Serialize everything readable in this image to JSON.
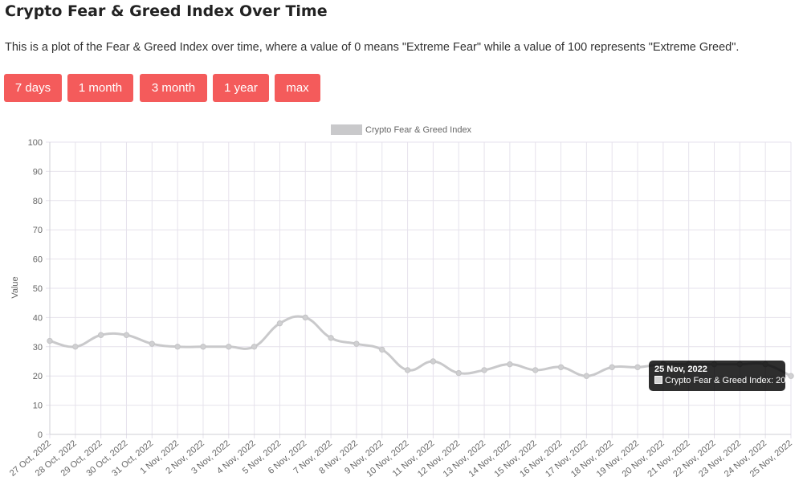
{
  "page": {
    "title": "Crypto Fear & Greed Index Over Time",
    "description": "This is a plot of the Fear & Greed Index over time, where a value of 0 means \"Extreme Fear\" while a value of 100 represents \"Extreme Greed\"."
  },
  "buttons": [
    {
      "label": "7 days"
    },
    {
      "label": "1 month"
    },
    {
      "label": "3 month"
    },
    {
      "label": "1 year"
    },
    {
      "label": "max"
    }
  ],
  "tooltip": {
    "date": "25 Nov, 2022",
    "series": "Crypto Fear & Greed Index",
    "value": "20",
    "text": "Crypto Fear & Greed Index: 20"
  },
  "colors": {
    "button": "#f45b5b",
    "line": "#c9c9cb",
    "grid": "#e6e2ec"
  },
  "chart_data": {
    "type": "line",
    "title": "",
    "xlabel": "",
    "ylabel": "Value",
    "ylim": [
      0,
      100
    ],
    "yticks": [
      0,
      10,
      20,
      30,
      40,
      50,
      60,
      70,
      80,
      90,
      100
    ],
    "grid": true,
    "legend_position": "top-center",
    "categories": [
      "27 Oct, 2022",
      "28 Oct, 2022",
      "29 Oct, 2022",
      "30 Oct, 2022",
      "31 Oct, 2022",
      "1 Nov, 2022",
      "2 Nov, 2022",
      "3 Nov, 2022",
      "4 Nov, 2022",
      "5 Nov, 2022",
      "6 Nov, 2022",
      "7 Nov, 2022",
      "8 Nov, 2022",
      "9 Nov, 2022",
      "10 Nov, 2022",
      "11 Nov, 2022",
      "12 Nov, 2022",
      "13 Nov, 2022",
      "14 Nov, 2022",
      "15 Nov, 2022",
      "16 Nov, 2022",
      "17 Nov, 2022",
      "18 Nov, 2022",
      "19 Nov, 2022",
      "20 Nov, 2022",
      "21 Nov, 2022",
      "22 Nov, 2022",
      "23 Nov, 2022",
      "24 Nov, 2022",
      "25 Nov, 2022"
    ],
    "series": [
      {
        "name": "Crypto Fear & Greed Index",
        "values": [
          32,
          30,
          34,
          34,
          31,
          30,
          30,
          30,
          30,
          38,
          40,
          33,
          31,
          29,
          22,
          25,
          21,
          22,
          24,
          22,
          23,
          20,
          23,
          23,
          24,
          24,
          24,
          24,
          24,
          20
        ]
      }
    ]
  }
}
